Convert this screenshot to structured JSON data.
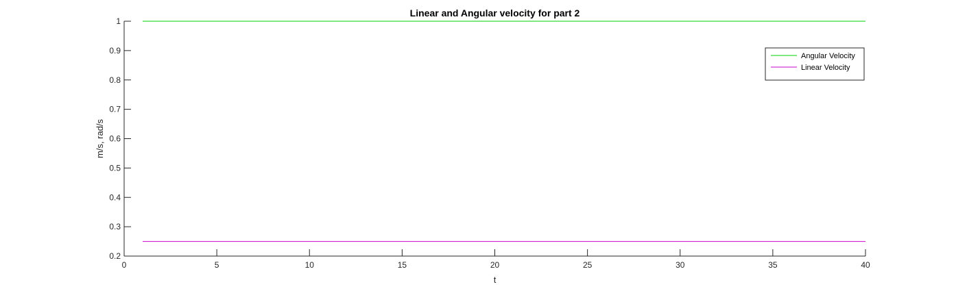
{
  "chart_data": {
    "type": "line",
    "title": "Linear and Angular velocity for part 2",
    "xlabel": "t",
    "ylabel": "m/s, rad/s",
    "xlim": [
      0,
      40
    ],
    "ylim": [
      0.2,
      1
    ],
    "xticks": [
      0,
      5,
      10,
      15,
      20,
      25,
      30,
      35,
      40
    ],
    "xtick_labels": [
      "0",
      "5",
      "10",
      "15",
      "20",
      "25",
      "30",
      "35",
      "40"
    ],
    "yticks": [
      0.2,
      0.3,
      0.4,
      0.5,
      0.6,
      0.7,
      0.8,
      0.9,
      1
    ],
    "ytick_labels": [
      "0.2",
      "0.3",
      "0.4",
      "0.5",
      "0.6",
      "0.7",
      "0.8",
      "0.9",
      "1"
    ],
    "grid": false,
    "legend_position": "top-right",
    "series": [
      {
        "name": "Angular Velocity",
        "color": "#00d000",
        "x": [
          1,
          40
        ],
        "y": [
          1,
          1
        ]
      },
      {
        "name": "Linear Velocity",
        "color": "#cc00cc",
        "x": [
          1,
          40
        ],
        "y": [
          0.25,
          0.25
        ]
      }
    ]
  }
}
